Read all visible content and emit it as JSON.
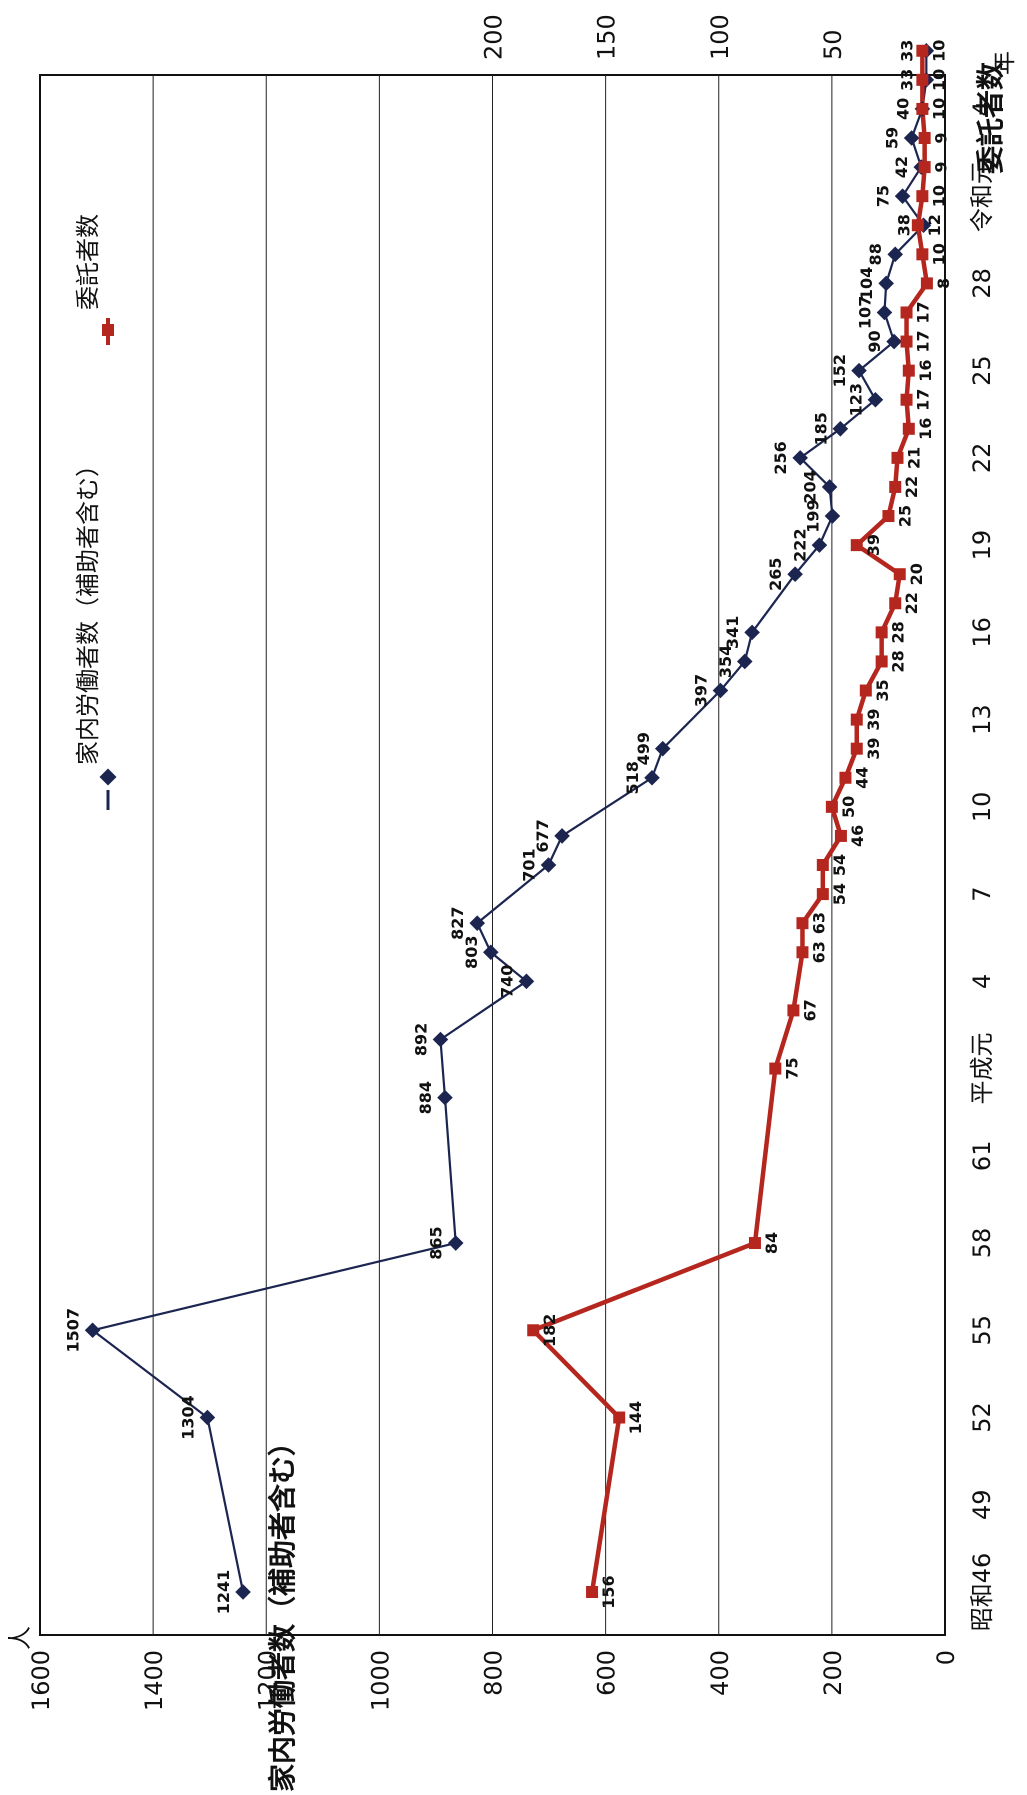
{
  "chart_data": {
    "type": "line",
    "orientation": "rotated-90",
    "grid": true,
    "legend_position": "top",
    "unit_label": "人",
    "x_unit_label": "年",
    "left_axis_title": "家内労働者数（補助者含む）",
    "right_axis_title": "委託者数",
    "x_ticks": [
      "昭和46",
      "49",
      "52",
      "55",
      "58",
      "61",
      "平成元",
      "4",
      "7",
      "10",
      "13",
      "16",
      "19",
      "22",
      "25",
      "28",
      "令和元",
      "4"
    ],
    "left_ticks": [
      "0",
      "200",
      "400",
      "600",
      "800",
      "1000",
      "1200",
      "1400",
      "1600"
    ],
    "right_ticks": [
      "50",
      "100",
      "150",
      "200"
    ],
    "left_range": [
      0,
      1600
    ],
    "right_range": [
      0,
      400
    ],
    "series": [
      {
        "name": "家内労働者数（補助者含む）",
        "axis": "left",
        "color": "#1b2550",
        "marker": "diamond",
        "points": [
          {
            "x": 0,
            "y": 1241,
            "label": "1241"
          },
          {
            "x": 6,
            "y": 1304,
            "label": "1304"
          },
          {
            "x": 9,
            "y": 1507,
            "label": "1507"
          },
          {
            "x": 12,
            "y": 865,
            "label": "865"
          },
          {
            "x": 17,
            "y": 884,
            "label": "884"
          },
          {
            "x": 19,
            "y": 892,
            "label": "892"
          },
          {
            "x": 21,
            "y": 740,
            "label": "740"
          },
          {
            "x": 22,
            "y": 803,
            "label": "803"
          },
          {
            "x": 23,
            "y": 827,
            "label": "827"
          },
          {
            "x": 25,
            "y": 701,
            "label": "701"
          },
          {
            "x": 26,
            "y": 677,
            "label": "677"
          },
          {
            "x": 28,
            "y": 518,
            "label": "518"
          },
          {
            "x": 29,
            "y": 499,
            "label": "499"
          },
          {
            "x": 31,
            "y": 397,
            "label": "397"
          },
          {
            "x": 32,
            "y": 354,
            "label": "354"
          },
          {
            "x": 33,
            "y": 341,
            "label": "341"
          },
          {
            "x": 35,
            "y": 265,
            "label": "265"
          },
          {
            "x": 36,
            "y": 222,
            "label": "222"
          },
          {
            "x": 37,
            "y": 199,
            "label": "199"
          },
          {
            "x": 38,
            "y": 204,
            "label": "204"
          },
          {
            "x": 39,
            "y": 256,
            "label": "256"
          },
          {
            "x": 40,
            "y": 185,
            "label": "185"
          },
          {
            "x": 41,
            "y": 123,
            "label": "123"
          },
          {
            "x": 42,
            "y": 152,
            "label": "152"
          },
          {
            "x": 43,
            "y": 90,
            "label": "90"
          },
          {
            "x": 44,
            "y": 107,
            "label": "107"
          },
          {
            "x": 45,
            "y": 104,
            "label": "104"
          },
          {
            "x": 46,
            "y": 88,
            "label": "88"
          },
          {
            "x": 47,
            "y": 38,
            "label": "38"
          },
          {
            "x": 48,
            "y": 75,
            "label": "75"
          },
          {
            "x": 49,
            "y": 42,
            "label": "42"
          },
          {
            "x": 50,
            "y": 59,
            "label": "59"
          },
          {
            "x": 51,
            "y": 40,
            "label": "40"
          },
          {
            "x": 52,
            "y": 33,
            "label": "33"
          },
          {
            "x": 53,
            "y": 33,
            "label": "33"
          }
        ]
      },
      {
        "name": "委託者数",
        "axis": "right",
        "color": "#b5261e",
        "marker": "square",
        "points": [
          {
            "x": 0,
            "y": 156,
            "label": "156"
          },
          {
            "x": 6,
            "y": 144,
            "label": "144"
          },
          {
            "x": 9,
            "y": 182,
            "label": "182"
          },
          {
            "x": 12,
            "y": 84,
            "label": "84"
          },
          {
            "x": 18,
            "y": 75,
            "label": "75"
          },
          {
            "x": 20,
            "y": 67,
            "label": "67"
          },
          {
            "x": 22,
            "y": 63,
            "label": "63"
          },
          {
            "x": 23,
            "y": 63,
            "label": "63"
          },
          {
            "x": 24,
            "y": 54,
            "label": "54"
          },
          {
            "x": 25,
            "y": 54,
            "label": "54"
          },
          {
            "x": 26,
            "y": 46,
            "label": "46"
          },
          {
            "x": 27,
            "y": 50,
            "label": "50"
          },
          {
            "x": 28,
            "y": 44,
            "label": "44"
          },
          {
            "x": 29,
            "y": 39,
            "label": "39"
          },
          {
            "x": 30,
            "y": 39,
            "label": "39"
          },
          {
            "x": 31,
            "y": 35,
            "label": "35"
          },
          {
            "x": 32,
            "y": 28,
            "label": "28"
          },
          {
            "x": 33,
            "y": 28,
            "label": "28"
          },
          {
            "x": 34,
            "y": 22,
            "label": "22"
          },
          {
            "x": 35,
            "y": 20,
            "label": "20"
          },
          {
            "x": 36,
            "y": 39,
            "label": "39"
          },
          {
            "x": 37,
            "y": 25,
            "label": "25"
          },
          {
            "x": 38,
            "y": 22,
            "label": "22"
          },
          {
            "x": 39,
            "y": 21,
            "label": "21"
          },
          {
            "x": 40,
            "y": 16,
            "label": "16"
          },
          {
            "x": 41,
            "y": 17,
            "label": "17"
          },
          {
            "x": 42,
            "y": 16,
            "label": "16"
          },
          {
            "x": 43,
            "y": 17,
            "label": "17"
          },
          {
            "x": 44,
            "y": 17,
            "label": "17"
          },
          {
            "x": 45,
            "y": 8,
            "label": "8"
          },
          {
            "x": 46,
            "y": 10,
            "label": "10"
          },
          {
            "x": 47,
            "y": 12,
            "label": "12"
          },
          {
            "x": 48,
            "y": 10,
            "label": "10"
          },
          {
            "x": 49,
            "y": 9,
            "label": "9"
          },
          {
            "x": 50,
            "y": 9,
            "label": "9"
          },
          {
            "x": 51,
            "y": 10,
            "label": "10"
          },
          {
            "x": 52,
            "y": 10,
            "label": "10"
          },
          {
            "x": 53,
            "y": 10,
            "label": "10"
          }
        ]
      }
    ]
  }
}
